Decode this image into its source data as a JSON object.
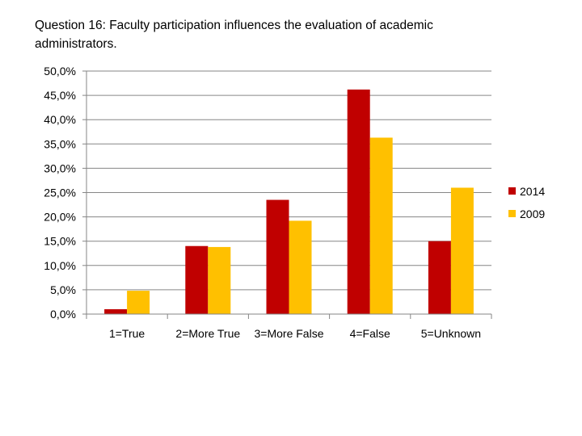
{
  "chart_data": {
    "type": "bar",
    "title": "Question 16: Faculty participation influences the evaluation of academic administrators.",
    "categories": [
      "1=True",
      "2=More True",
      "3=More False",
      "4=False",
      "5=Unknown"
    ],
    "series": [
      {
        "name": "2014",
        "color": "#C00000",
        "values": [
          1.0,
          14.0,
          23.5,
          46.2,
          15.0
        ]
      },
      {
        "name": "2009",
        "color": "#FFC000",
        "values": [
          4.8,
          13.8,
          19.2,
          36.3,
          26.0
        ]
      }
    ],
    "y_ticks": [
      "0,0%",
      "5,0%",
      "10,0%",
      "15,0%",
      "20,0%",
      "25,0%",
      "30,0%",
      "35,0%",
      "40,0%",
      "45,0%",
      "50,0%"
    ],
    "ylim": [
      0,
      50
    ],
    "grid": true,
    "legend_position": "right"
  }
}
